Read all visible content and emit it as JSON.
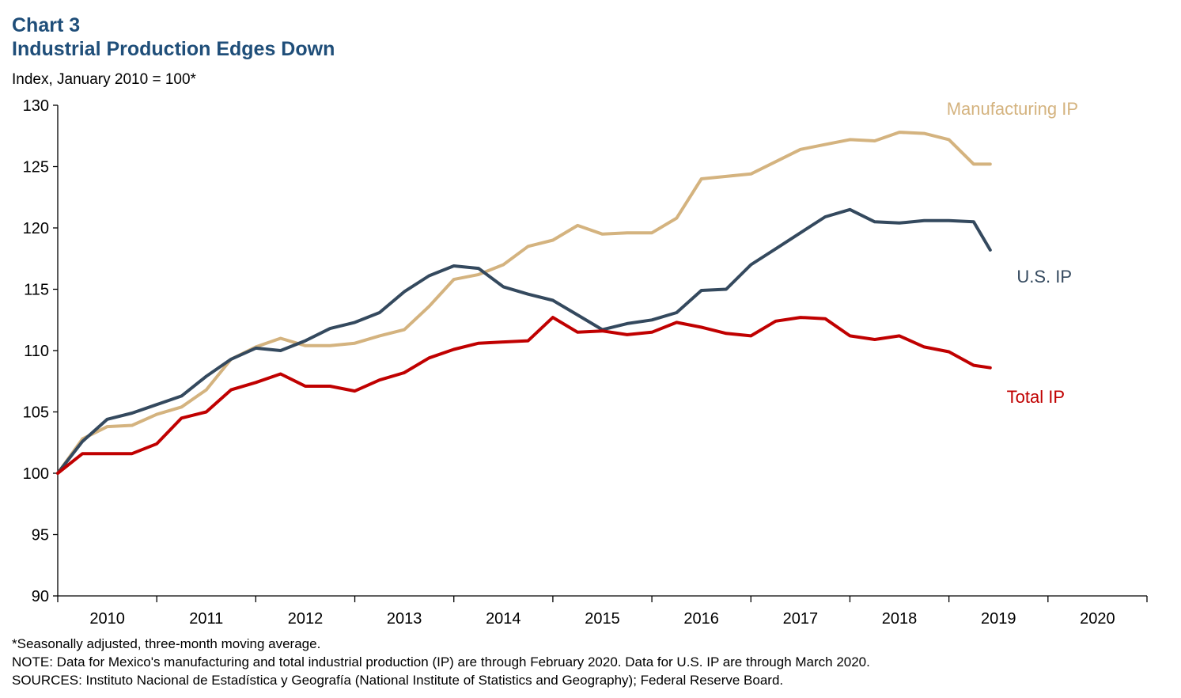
{
  "header": {
    "chart_label": "Chart 3",
    "title": "Industrial Production Edges Down",
    "unit_label": "Index, January 2010 = 100*"
  },
  "footnotes": [
    "*Seasonally adjusted, three-month moving average.",
    "NOTE: Data for Mexico's manufacturing and total industrial production (IP) are through February 2020. Data for U.S. IP are through March 2020.",
    "SOURCES: Instituto Nacional de Estadística y Geografía (National Institute of Statistics and Geography); Federal Reserve Board."
  ],
  "chart_data": {
    "type": "line",
    "title": "Industrial Production Edges Down",
    "ylabel": "Index, January 2010 = 100*",
    "xlabel": "",
    "ylim": [
      90,
      130
    ],
    "yticks": [
      90,
      95,
      100,
      105,
      110,
      115,
      120,
      125,
      130
    ],
    "xlim": [
      2010,
      2021
    ],
    "xtick_labels": [
      "2010",
      "2011",
      "2012",
      "2013",
      "2014",
      "2015",
      "2016",
      "2017",
      "2018",
      "2019",
      "2020"
    ],
    "grid": false,
    "legend": "inline labels at line ends",
    "series": [
      {
        "name": "Manufacturing IP",
        "color": "#d4b37f",
        "points": [
          [
            "2010-01",
            100.0
          ],
          [
            "2010-04",
            102.8
          ],
          [
            "2010-07",
            103.8
          ],
          [
            "2010-10",
            103.9
          ],
          [
            "2011-01",
            104.8
          ],
          [
            "2011-04",
            105.4
          ],
          [
            "2011-07",
            106.8
          ],
          [
            "2011-10",
            109.3
          ],
          [
            "2012-01",
            110.3
          ],
          [
            "2012-04",
            111.0
          ],
          [
            "2012-07",
            110.4
          ],
          [
            "2012-10",
            110.4
          ],
          [
            "2013-01",
            110.6
          ],
          [
            "2013-04",
            111.2
          ],
          [
            "2013-07",
            111.7
          ],
          [
            "2013-10",
            113.6
          ],
          [
            "2014-01",
            115.8
          ],
          [
            "2014-04",
            116.2
          ],
          [
            "2014-07",
            117.0
          ],
          [
            "2014-10",
            118.5
          ],
          [
            "2015-01",
            119.0
          ],
          [
            "2015-04",
            120.2
          ],
          [
            "2015-07",
            119.5
          ],
          [
            "2015-10",
            119.6
          ],
          [
            "2016-01",
            119.6
          ],
          [
            "2016-04",
            120.8
          ],
          [
            "2016-07",
            124.0
          ],
          [
            "2016-10",
            124.2
          ],
          [
            "2017-01",
            124.4
          ],
          [
            "2017-04",
            125.4
          ],
          [
            "2017-07",
            126.4
          ],
          [
            "2017-10",
            126.8
          ],
          [
            "2018-01",
            127.2
          ],
          [
            "2018-04",
            127.1
          ],
          [
            "2018-07",
            127.8
          ],
          [
            "2018-10",
            127.7
          ],
          [
            "2019-01",
            127.2
          ],
          [
            "2019-04",
            125.2
          ],
          [
            "2019-06",
            125.2
          ]
        ]
      },
      {
        "name": "U.S. IP",
        "color": "#34495e",
        "points": [
          [
            "2010-01",
            100.0
          ],
          [
            "2010-04",
            102.6
          ],
          [
            "2010-07",
            104.4
          ],
          [
            "2010-10",
            104.9
          ],
          [
            "2011-01",
            105.6
          ],
          [
            "2011-04",
            106.3
          ],
          [
            "2011-07",
            107.9
          ],
          [
            "2011-10",
            109.3
          ],
          [
            "2012-01",
            110.2
          ],
          [
            "2012-04",
            110.0
          ],
          [
            "2012-07",
            110.8
          ],
          [
            "2012-10",
            111.8
          ],
          [
            "2013-01",
            112.3
          ],
          [
            "2013-04",
            113.1
          ],
          [
            "2013-07",
            114.8
          ],
          [
            "2013-10",
            116.1
          ],
          [
            "2014-01",
            116.9
          ],
          [
            "2014-04",
            116.7
          ],
          [
            "2014-07",
            115.2
          ],
          [
            "2014-10",
            114.6
          ],
          [
            "2015-01",
            114.1
          ],
          [
            "2015-04",
            112.9
          ],
          [
            "2015-07",
            111.7
          ],
          [
            "2015-10",
            112.2
          ],
          [
            "2016-01",
            112.5
          ],
          [
            "2016-04",
            113.1
          ],
          [
            "2016-07",
            114.9
          ],
          [
            "2016-10",
            115.0
          ],
          [
            "2017-01",
            117.0
          ],
          [
            "2017-04",
            118.3
          ],
          [
            "2017-07",
            119.6
          ],
          [
            "2017-10",
            120.9
          ],
          [
            "2018-01",
            121.5
          ],
          [
            "2018-04",
            120.5
          ],
          [
            "2018-07",
            120.4
          ],
          [
            "2018-10",
            120.6
          ],
          [
            "2019-01",
            120.6
          ],
          [
            "2019-04",
            120.5
          ],
          [
            "2019-06",
            118.2
          ]
        ]
      },
      {
        "name": "Total IP",
        "color": "#c00000",
        "points": [
          [
            "2010-01",
            100.0
          ],
          [
            "2010-04",
            101.6
          ],
          [
            "2010-07",
            101.6
          ],
          [
            "2010-10",
            101.6
          ],
          [
            "2011-01",
            102.4
          ],
          [
            "2011-04",
            104.5
          ],
          [
            "2011-07",
            105.0
          ],
          [
            "2011-10",
            106.8
          ],
          [
            "2012-01",
            107.4
          ],
          [
            "2012-04",
            108.1
          ],
          [
            "2012-07",
            107.1
          ],
          [
            "2012-10",
            107.1
          ],
          [
            "2013-01",
            106.7
          ],
          [
            "2013-04",
            107.6
          ],
          [
            "2013-07",
            108.2
          ],
          [
            "2013-10",
            109.4
          ],
          [
            "2014-01",
            110.1
          ],
          [
            "2014-04",
            110.6
          ],
          [
            "2014-07",
            110.7
          ],
          [
            "2014-10",
            110.8
          ],
          [
            "2015-01",
            112.7
          ],
          [
            "2015-04",
            111.5
          ],
          [
            "2015-07",
            111.6
          ],
          [
            "2015-10",
            111.3
          ],
          [
            "2016-01",
            111.5
          ],
          [
            "2016-04",
            112.3
          ],
          [
            "2016-07",
            111.9
          ],
          [
            "2016-10",
            111.4
          ],
          [
            "2017-01",
            111.2
          ],
          [
            "2017-04",
            112.4
          ],
          [
            "2017-07",
            112.7
          ],
          [
            "2017-10",
            112.6
          ],
          [
            "2018-01",
            111.2
          ],
          [
            "2018-04",
            110.9
          ],
          [
            "2018-07",
            111.2
          ],
          [
            "2018-10",
            110.3
          ],
          [
            "2019-01",
            109.9
          ],
          [
            "2019-04",
            108.8
          ],
          [
            "2019-06",
            108.6
          ]
        ]
      }
    ]
  }
}
